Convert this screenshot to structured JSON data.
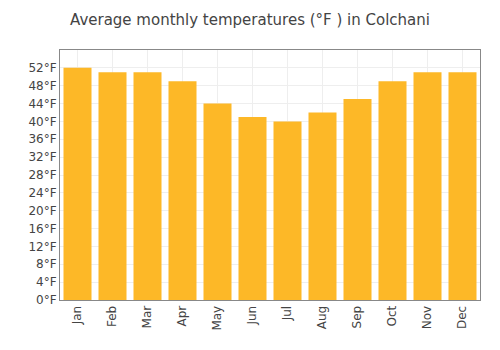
{
  "chart_data": {
    "type": "bar",
    "title": "Average monthly temperatures (°F ) in Colchani",
    "categories": [
      "Jan",
      "Feb",
      "Mar",
      "Apr",
      "May",
      "Jun",
      "Jul",
      "Aug",
      "Sep",
      "Oct",
      "Nov",
      "Dec"
    ],
    "values": [
      52,
      51,
      51,
      49,
      44,
      41,
      40,
      42,
      45,
      49,
      51,
      51
    ],
    "color": "#FDB827",
    "ylim": [
      0,
      56
    ],
    "yticks": [
      {
        "value": 0,
        "label": "0°F"
      },
      {
        "value": 4,
        "label": "4°F"
      },
      {
        "value": 8,
        "label": "8°F"
      },
      {
        "value": 12,
        "label": "12°F"
      },
      {
        "value": 16,
        "label": "16°F"
      },
      {
        "value": 20,
        "label": "20°F"
      },
      {
        "value": 24,
        "label": "24°F"
      },
      {
        "value": 28,
        "label": "28°F"
      },
      {
        "value": 32,
        "label": "32°F"
      },
      {
        "value": 36,
        "label": "36°F"
      },
      {
        "value": 40,
        "label": "40°F"
      },
      {
        "value": 44,
        "label": "44°F"
      },
      {
        "value": 48,
        "label": "48°F"
      },
      {
        "value": 52,
        "label": "52°F"
      }
    ],
    "grid": true
  }
}
